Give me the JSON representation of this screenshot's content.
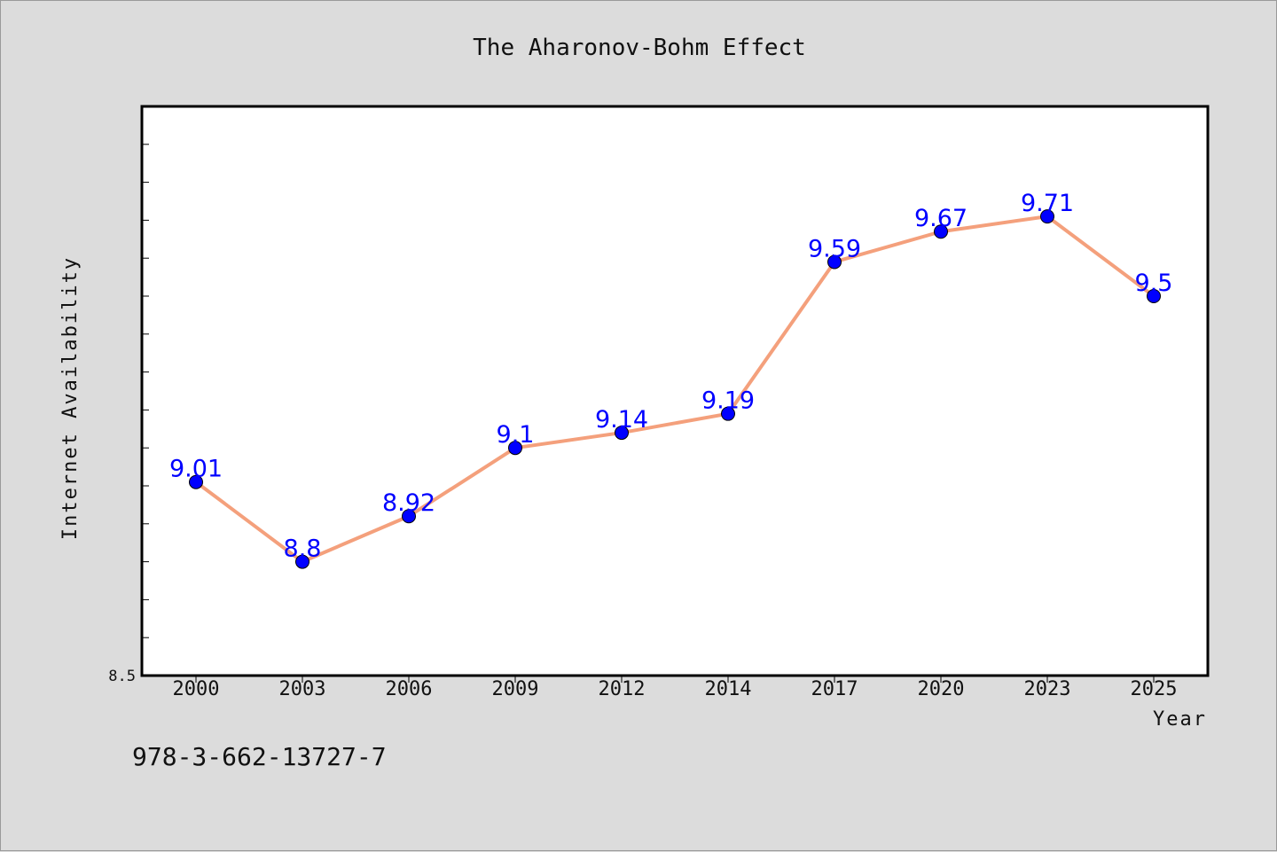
{
  "chart_data": {
    "type": "line",
    "title": "The Aharonov-Bohm Effect",
    "xlabel": "Year",
    "ylabel": "Internet Availability",
    "categories": [
      "2000",
      "2003",
      "2006",
      "2009",
      "2012",
      "2014",
      "2017",
      "2020",
      "2023",
      "2025"
    ],
    "values": [
      9.01,
      8.8,
      8.92,
      9.1,
      9.14,
      9.19,
      9.59,
      9.67,
      9.71,
      9.5
    ],
    "data_labels": [
      "9.01",
      "8.8",
      "8.92",
      "9.1",
      "9.14",
      "9.19",
      "9.59",
      "9.67",
      "9.71",
      "9.5"
    ],
    "y_tick_labels": [
      "8.5"
    ],
    "ylim": [
      8.5,
      10.0
    ],
    "grid": false,
    "line_color": "#f4a07c",
    "marker_color": "#0000ff",
    "label_color": "#0000ff"
  },
  "footer": {
    "isbn": "978-3-662-13727-7"
  }
}
